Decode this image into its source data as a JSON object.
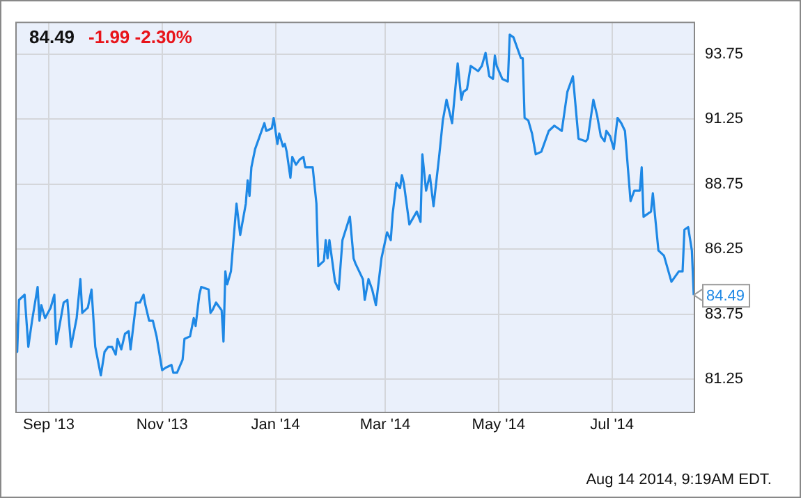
{
  "chart_data": {
    "type": "line",
    "title": "84.49",
    "subtitle": "-1.99 -2.30%",
    "annotations": [
      {
        "text": "84.49",
        "x": "2014-08-14",
        "y": 84.49
      },
      "Aug 14 2014, 9:19AM EDT."
    ],
    "xlim": [
      "2013-08-14",
      "2014-08-14"
    ],
    "xticks": [
      {
        "value": "2013-09-01",
        "label": "Sep '13"
      },
      {
        "value": "2013-11-01",
        "label": "Nov '13"
      },
      {
        "value": "2014-01-01",
        "label": "Jan '14"
      },
      {
        "value": "2014-03-01",
        "label": "Mar '14"
      },
      {
        "value": "2014-05-01",
        "label": "May '14"
      },
      {
        "value": "2014-07-01",
        "label": "Jul '14"
      }
    ],
    "ylim": [
      80,
      95
    ],
    "yticks": [
      81.25,
      83.75,
      86.25,
      88.75,
      91.25,
      93.75
    ],
    "grid": true,
    "legend": false,
    "marker": "none",
    "line_style": "solid",
    "series": [
      {
        "color": "#1e88e5",
        "x": [
          "2013-08-14",
          "2013-08-15",
          "2013-08-16",
          "2013-08-19",
          "2013-08-21",
          "2013-08-23",
          "2013-08-26",
          "2013-08-27",
          "2013-08-28",
          "2013-08-30",
          "2013-09-02",
          "2013-09-04",
          "2013-09-05",
          "2013-09-09",
          "2013-09-11",
          "2013-09-13",
          "2013-09-16",
          "2013-09-18",
          "2013-09-19",
          "2013-09-22",
          "2013-09-24",
          "2013-09-26",
          "2013-09-29",
          "2013-10-01",
          "2013-10-03",
          "2013-10-05",
          "2013-10-07",
          "2013-10-08",
          "2013-10-10",
          "2013-10-12",
          "2013-10-14",
          "2013-10-15",
          "2013-10-18",
          "2013-10-20",
          "2013-10-22",
          "2013-10-23",
          "2013-10-25",
          "2013-10-27",
          "2013-10-29",
          "2013-11-01",
          "2013-11-03",
          "2013-11-06",
          "2013-11-07",
          "2013-11-09",
          "2013-11-12",
          "2013-11-13",
          "2013-11-16",
          "2013-11-18",
          "2013-11-19",
          "2013-11-21",
          "2013-11-22",
          "2013-11-26",
          "2013-11-27",
          "2013-11-28",
          "2013-11-30",
          "2013-12-03",
          "2013-12-04",
          "2013-12-05",
          "2013-12-06",
          "2013-12-08",
          "2013-12-11",
          "2013-12-13",
          "2013-12-16",
          "2013-12-17",
          "2013-12-18",
          "2013-12-19",
          "2013-12-21",
          "2013-12-26",
          "2013-12-27",
          "2013-12-30",
          "2013-12-31",
          "2014-01-02",
          "2014-01-03",
          "2014-01-05",
          "2014-01-06",
          "2014-01-07",
          "2014-01-09",
          "2014-01-10",
          "2014-01-12",
          "2014-01-14",
          "2014-01-16",
          "2014-01-17",
          "2014-01-21",
          "2014-01-23",
          "2014-01-24",
          "2014-01-27",
          "2014-01-28",
          "2014-01-29",
          "2014-01-30",
          "2014-02-02",
          "2014-02-04",
          "2014-02-06",
          "2014-02-10",
          "2014-02-12",
          "2014-02-13",
          "2014-02-17",
          "2014-02-18",
          "2014-02-20",
          "2014-02-22",
          "2014-02-24",
          "2014-02-25",
          "2014-02-27",
          "2014-03-02",
          "2014-03-04",
          "2014-03-05",
          "2014-03-07",
          "2014-03-09",
          "2014-03-10",
          "2014-03-11",
          "2014-03-14",
          "2014-03-18",
          "2014-03-20",
          "2014-03-21",
          "2014-03-23",
          "2014-03-25",
          "2014-03-27",
          "2014-03-30",
          "2014-04-01",
          "2014-04-03",
          "2014-04-06",
          "2014-04-09",
          "2014-04-11",
          "2014-04-12",
          "2014-04-14",
          "2014-04-16",
          "2014-04-20",
          "2014-04-22",
          "2014-04-24",
          "2014-04-26",
          "2014-04-28",
          "2014-04-29",
          "2014-04-30",
          "2014-05-03",
          "2014-05-06",
          "2014-05-07",
          "2014-05-09",
          "2014-05-13",
          "2014-05-14",
          "2014-05-15",
          "2014-05-17",
          "2014-05-19",
          "2014-05-21",
          "2014-05-24",
          "2014-05-27",
          "2014-05-28",
          "2014-05-31",
          "2014-06-04",
          "2014-06-07",
          "2014-06-10",
          "2014-06-13",
          "2014-06-17",
          "2014-06-18",
          "2014-06-21",
          "2014-06-23",
          "2014-06-25",
          "2014-06-27",
          "2014-06-28",
          "2014-06-30",
          "2014-07-02",
          "2014-07-04",
          "2014-07-06",
          "2014-07-08",
          "2014-07-11",
          "2014-07-13",
          "2014-07-16",
          "2014-07-17",
          "2014-07-18",
          "2014-07-20",
          "2014-07-22",
          "2014-07-23",
          "2014-07-26",
          "2014-07-29",
          "2014-08-02",
          "2014-08-04",
          "2014-08-06",
          "2014-08-08",
          "2014-08-09",
          "2014-08-11",
          "2014-08-13",
          "2014-08-14"
        ],
        "values": [
          83.9,
          82.3,
          84.3,
          84.5,
          82.5,
          83.5,
          84.8,
          83.5,
          84.1,
          83.6,
          84.0,
          84.5,
          82.6,
          84.2,
          84.3,
          82.5,
          83.6,
          85.1,
          83.8,
          84.0,
          84.7,
          82.5,
          81.4,
          82.3,
          82.5,
          82.5,
          82.2,
          82.8,
          82.4,
          83.0,
          83.1,
          82.4,
          84.2,
          84.2,
          84.5,
          84.1,
          83.5,
          83.5,
          82.9,
          81.6,
          81.7,
          81.8,
          81.5,
          81.5,
          82.0,
          82.8,
          82.9,
          83.6,
          83.3,
          84.5,
          84.8,
          84.7,
          83.8,
          83.9,
          84.2,
          83.9,
          82.7,
          85.4,
          84.9,
          85.4,
          88.0,
          86.8,
          88.0,
          88.9,
          88.3,
          89.4,
          90.1,
          91.1,
          90.8,
          90.9,
          91.3,
          90.3,
          90.7,
          90.2,
          90.3,
          90.0,
          89.0,
          89.8,
          89.5,
          89.7,
          89.8,
          89.4,
          89.4,
          88.0,
          85.6,
          85.8,
          86.6,
          85.9,
          86.6,
          85.0,
          84.7,
          86.6,
          87.5,
          85.9,
          85.7,
          85.1,
          84.3,
          85.1,
          84.7,
          84.1,
          84.7,
          85.9,
          86.9,
          86.6,
          87.6,
          88.8,
          88.6,
          89.1,
          88.8,
          87.2,
          87.7,
          87.3,
          89.9,
          88.5,
          89.1,
          87.9,
          89.8,
          91.2,
          92.0,
          91.1,
          93.4,
          92.0,
          92.3,
          92.4,
          93.3,
          93.1,
          93.3,
          93.8,
          92.9,
          92.8,
          93.7,
          93.3,
          92.8,
          92.7,
          94.5,
          94.4,
          93.6,
          93.6,
          91.3,
          91.2,
          90.7,
          89.9,
          90.0,
          90.6,
          90.8,
          91.0,
          90.8,
          92.3,
          92.9,
          90.5,
          90.4,
          90.5,
          92.0,
          91.4,
          90.6,
          90.4,
          90.8,
          90.6,
          90.1,
          91.3,
          91.1,
          90.8,
          88.1,
          88.5,
          88.5,
          89.4,
          87.5,
          87.6,
          87.7,
          88.4,
          86.2,
          86.0,
          85.0,
          85.2,
          85.4,
          85.4,
          87.0,
          87.1,
          86.2,
          84.49
        ]
      }
    ]
  }
}
